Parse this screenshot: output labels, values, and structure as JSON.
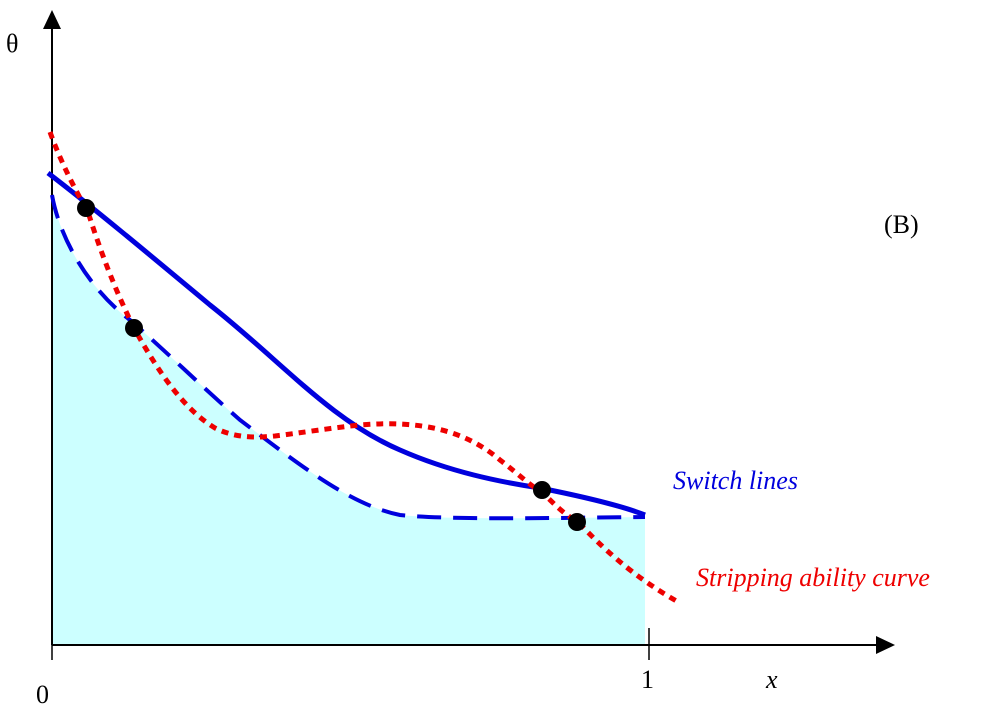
{
  "axis": {
    "y_label": "θ",
    "x_label": "x",
    "origin_label": "0",
    "x_tick_label": "1"
  },
  "panel_label": "(B)",
  "legend": {
    "switch_lines": "Switch lines",
    "stripping_curve": "Stripping ability curve"
  },
  "colors": {
    "switch_lines": "#0000dd",
    "stripping_curve": "#ee0000",
    "shaded_region": "#ccffff",
    "axis": "#000000",
    "intersection_points": "#000000"
  },
  "intersection_point_count": 4
}
